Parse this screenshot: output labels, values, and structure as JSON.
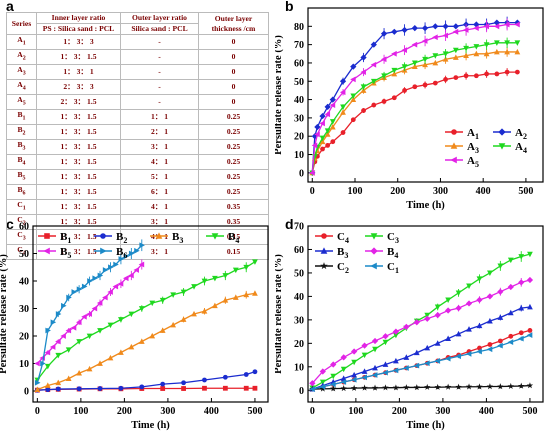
{
  "panel_labels": [
    "a",
    "b",
    "c",
    "d"
  ],
  "table": {
    "headers": [
      "Series",
      "Inner layer ratio",
      "Outer layer ratio",
      "Outer layer thickness /cm"
    ],
    "subheaders": [
      "PS : Silica sand : PCL",
      "Silica sand : PCL"
    ],
    "rows": [
      {
        "series": "A",
        "sub": "1",
        "inner": "1： 3： 3",
        "outer": "-",
        "thick": "0"
      },
      {
        "series": "A",
        "sub": "2",
        "inner": "1： 3： 1.5",
        "outer": "-",
        "thick": "0"
      },
      {
        "series": "A",
        "sub": "3",
        "inner": "1： 3： 1",
        "outer": "-",
        "thick": "0"
      },
      {
        "series": "A",
        "sub": "4",
        "inner": "2： 3： 3",
        "outer": "-",
        "thick": "0"
      },
      {
        "series": "A",
        "sub": "5",
        "inner": "2： 3： 1.5",
        "outer": "-",
        "thick": "0"
      },
      {
        "series": "B",
        "sub": "1",
        "inner": "1： 3： 1.5",
        "outer": "1： 1",
        "thick": "0.25"
      },
      {
        "series": "B",
        "sub": "2",
        "inner": "1： 3： 1.5",
        "outer": "2： 1",
        "thick": "0.25"
      },
      {
        "series": "B",
        "sub": "3",
        "inner": "1： 3： 1.5",
        "outer": "3： 1",
        "thick": "0.25"
      },
      {
        "series": "B",
        "sub": "4",
        "inner": "1： 3： 1.5",
        "outer": "4： 1",
        "thick": "0.25"
      },
      {
        "series": "B",
        "sub": "5",
        "inner": "1： 3： 1.5",
        "outer": "5： 1",
        "thick": "0.25"
      },
      {
        "series": "B",
        "sub": "6",
        "inner": "1： 3： 1.5",
        "outer": "6： 1",
        "thick": "0.25"
      },
      {
        "series": "C",
        "sub": "1",
        "inner": "1： 3： 1.5",
        "outer": "4： 1",
        "thick": "0.35"
      },
      {
        "series": "C",
        "sub": "2",
        "inner": "1： 3： 1.5",
        "outer": "3： 1",
        "thick": "0.35"
      },
      {
        "series": "C",
        "sub": "3",
        "inner": "1： 3： 1.5",
        "outer": "4： 1",
        "thick": "0.15"
      },
      {
        "series": "C",
        "sub": "4",
        "inner": "1： 3： 1.5",
        "outer": "3： 1",
        "thick": "0.15"
      }
    ]
  },
  "chart_data": [
    {
      "panel": "b",
      "type": "line",
      "xlabel": "Time (h)",
      "ylabel": "Persulfate release rate (%)",
      "xlim": [
        -10,
        540
      ],
      "ylim": [
        -5,
        90
      ],
      "xticks": [
        0,
        100,
        200,
        300,
        400,
        500
      ],
      "yticks": [
        0,
        10,
        20,
        30,
        40,
        50,
        60,
        70,
        80
      ],
      "legend_columns": 2,
      "legend_placement": "bottom-right",
      "x": [
        0,
        6,
        12,
        24,
        36,
        48,
        72,
        96,
        120,
        144,
        168,
        192,
        216,
        240,
        264,
        288,
        312,
        336,
        360,
        384,
        408,
        432,
        456,
        480
      ],
      "series": [
        {
          "name": "A",
          "sub": "1",
          "color": "#e8202a",
          "marker": "circle",
          "values": [
            0,
            6,
            9,
            13,
            15,
            17,
            22,
            29,
            34,
            37,
            39,
            41,
            45,
            47,
            48,
            49,
            51,
            52,
            53,
            53,
            54,
            54,
            55,
            55
          ]
        },
        {
          "name": "A",
          "sub": "2",
          "color": "#1b2ccf",
          "marker": "diamond",
          "values": [
            0,
            20,
            25,
            31,
            36,
            40,
            50,
            58,
            63,
            70,
            76,
            77,
            78,
            79,
            79,
            80,
            80,
            80,
            81,
            81,
            81,
            82,
            82,
            82
          ]
        },
        {
          "name": "A",
          "sub": "3",
          "color": "#f08a1c",
          "marker": "triangle",
          "values": [
            0,
            8,
            12,
            17,
            21,
            25,
            33,
            40,
            45,
            49,
            52,
            54,
            56,
            58,
            59,
            60,
            62,
            63,
            64,
            65,
            65,
            66,
            66,
            66
          ]
        },
        {
          "name": "A",
          "sub": "4",
          "color": "#1fd81f",
          "marker": "triangle-down",
          "values": [
            0,
            9,
            14,
            19,
            23,
            28,
            36,
            42,
            47,
            50,
            53,
            56,
            58,
            60,
            62,
            64,
            65,
            67,
            68,
            69,
            70,
            71,
            71,
            71
          ]
        },
        {
          "name": "A",
          "sub": "5",
          "color": "#e223e6",
          "marker": "triangle-left",
          "values": [
            0,
            15,
            21,
            27,
            32,
            37,
            44,
            51,
            55,
            59,
            62,
            65,
            67,
            70,
            72,
            74,
            75,
            77,
            78,
            79,
            80,
            80,
            81,
            81
          ]
        }
      ]
    },
    {
      "panel": "c",
      "type": "line",
      "xlabel": "Time (h)",
      "ylabel": "Persulfate release rate (%)",
      "xlim": [
        -10,
        530
      ],
      "ylim": [
        -4,
        60
      ],
      "xticks": [
        0,
        100,
        200,
        300,
        400,
        500
      ],
      "yticks": [
        0,
        10,
        20,
        30,
        40,
        50,
        60
      ],
      "legend_columns": 4,
      "legend_placement": "top",
      "series": [
        {
          "name": "B",
          "sub": "1",
          "color": "#e8202a",
          "marker": "square",
          "x": [
            0,
            24,
            48,
            96,
            144,
            192,
            240,
            288,
            336,
            384,
            432,
            480,
            500
          ],
          "values": [
            0.3,
            0.5,
            0.6,
            0.7,
            0.8,
            0.8,
            0.9,
            0.9,
            0.9,
            1.0,
            1.0,
            1.0,
            1.0
          ]
        },
        {
          "name": "B",
          "sub": "2",
          "color": "#1b2ccf",
          "marker": "circle",
          "x": [
            0,
            24,
            48,
            96,
            144,
            192,
            240,
            288,
            336,
            384,
            432,
            480,
            500
          ],
          "values": [
            0.3,
            0.5,
            0.7,
            0.8,
            0.9,
            1.0,
            1.5,
            2.5,
            3.0,
            4.0,
            5.0,
            6.0,
            7.0
          ]
        },
        {
          "name": "B",
          "sub": "3",
          "color": "#f08a1c",
          "marker": "triangle",
          "x": [
            0,
            24,
            48,
            72,
            96,
            120,
            144,
            168,
            192,
            216,
            240,
            264,
            288,
            312,
            336,
            360,
            384,
            408,
            432,
            456,
            480,
            500
          ],
          "values": [
            0.5,
            2,
            3,
            4.5,
            6.5,
            8,
            10,
            12,
            14,
            16,
            18,
            20,
            22,
            24,
            26,
            28,
            29,
            31,
            33,
            34,
            35,
            35.5
          ]
        },
        {
          "name": "B",
          "sub": "4",
          "color": "#1fd81f",
          "marker": "triangle-down",
          "x": [
            0,
            24,
            48,
            72,
            96,
            120,
            144,
            168,
            192,
            216,
            240,
            264,
            288,
            312,
            336,
            360,
            384,
            408,
            432,
            456,
            480,
            500
          ],
          "values": [
            4,
            9,
            13,
            15,
            18,
            20,
            22,
            24,
            26,
            28,
            30,
            32,
            33,
            35,
            36,
            38,
            40,
            41,
            42,
            44,
            45,
            47
          ]
        },
        {
          "name": "B",
          "sub": "5",
          "color": "#e223e6",
          "marker": "triangle-left",
          "x": [
            0,
            12,
            24,
            36,
            48,
            60,
            72,
            84,
            96,
            108,
            120,
            132,
            144,
            156,
            168,
            180,
            192,
            204,
            216,
            228,
            240
          ],
          "values": [
            10,
            12,
            14,
            16,
            18,
            20,
            22,
            23,
            25,
            27,
            28,
            30,
            32,
            34,
            36,
            38,
            39,
            41,
            42,
            44,
            46
          ]
        },
        {
          "name": "B",
          "sub": "6",
          "color": "#1c8ac8",
          "marker": "triangle-right",
          "x": [
            0,
            12,
            24,
            36,
            48,
            60,
            72,
            84,
            96,
            108,
            120,
            132,
            144,
            156,
            168,
            180,
            192,
            204,
            216,
            228,
            240
          ],
          "values": [
            3,
            10,
            22,
            25,
            28,
            31,
            34,
            36,
            37,
            38,
            40,
            41,
            42,
            44,
            45,
            46,
            48,
            49,
            50,
            51,
            53
          ]
        }
      ]
    },
    {
      "panel": "d",
      "type": "line",
      "xlabel": "Time (h)",
      "ylabel": "Persulfate release rate (%)",
      "xlim": [
        -10,
        530
      ],
      "ylim": [
        -5,
        70
      ],
      "xticks": [
        0,
        100,
        200,
        300,
        400,
        500
      ],
      "yticks": [
        0,
        10,
        20,
        30,
        40,
        50,
        60,
        70
      ],
      "legend_columns": 2,
      "legend_placement": "top-left",
      "x": [
        0,
        24,
        48,
        72,
        96,
        120,
        144,
        168,
        192,
        216,
        240,
        264,
        288,
        312,
        336,
        360,
        384,
        408,
        432,
        456,
        480,
        500
      ],
      "series": [
        {
          "name": "C",
          "sub": "4",
          "color": "#e8202a",
          "marker": "circle",
          "values": [
            0.5,
            1.5,
            2.5,
            3.5,
            4.5,
            5.5,
            6.5,
            7.5,
            8.5,
            9.5,
            10.5,
            11.5,
            12.5,
            14,
            15,
            16.5,
            18,
            19.5,
            21,
            23,
            24.5,
            25.5
          ]
        },
        {
          "name": "C",
          "sub": "3",
          "color": "#1fd81f",
          "marker": "triangle-down",
          "values": [
            1,
            3.5,
            6,
            9,
            12,
            15,
            17.5,
            20.5,
            23.5,
            26.5,
            29.5,
            32,
            35.5,
            38.5,
            41.5,
            44.5,
            47.5,
            50,
            53,
            55.5,
            57,
            58
          ]
        },
        {
          "name": "B",
          "sub": "3",
          "color": "#1b2ccf",
          "marker": "triangle",
          "values": [
            0.5,
            2,
            3.5,
            5,
            6.5,
            8,
            9.5,
            11,
            12.5,
            14,
            16,
            18,
            20,
            22,
            24,
            26,
            27.5,
            29.5,
            31,
            33,
            35,
            35.5
          ]
        },
        {
          "name": "B",
          "sub": "4",
          "color": "#e223e6",
          "marker": "diamond",
          "values": [
            3,
            8,
            11,
            14,
            16.5,
            19,
            21,
            23,
            25,
            27,
            29,
            30.5,
            32,
            34,
            35,
            37,
            38.5,
            40,
            42,
            44,
            46,
            47
          ]
        },
        {
          "name": "C",
          "sub": "2",
          "color": "#111111",
          "marker": "star",
          "values": [
            0.5,
            0.6,
            0.7,
            0.8,
            0.9,
            1.0,
            1.0,
            1.1,
            1.1,
            1.2,
            1.2,
            1.3,
            1.3,
            1.4,
            1.4,
            1.5,
            1.5,
            1.6,
            1.6,
            1.7,
            1.8,
            2.0
          ]
        },
        {
          "name": "C",
          "sub": "1",
          "color": "#1c8ac8",
          "marker": "triangle-left",
          "values": [
            0.5,
            1.5,
            2.5,
            3.5,
            4.5,
            5.5,
            6.5,
            7.5,
            8.5,
            9.5,
            10.5,
            11.5,
            12.5,
            13.5,
            14.5,
            15.5,
            16.5,
            17.5,
            19,
            20.5,
            22,
            23.5
          ]
        }
      ]
    }
  ]
}
